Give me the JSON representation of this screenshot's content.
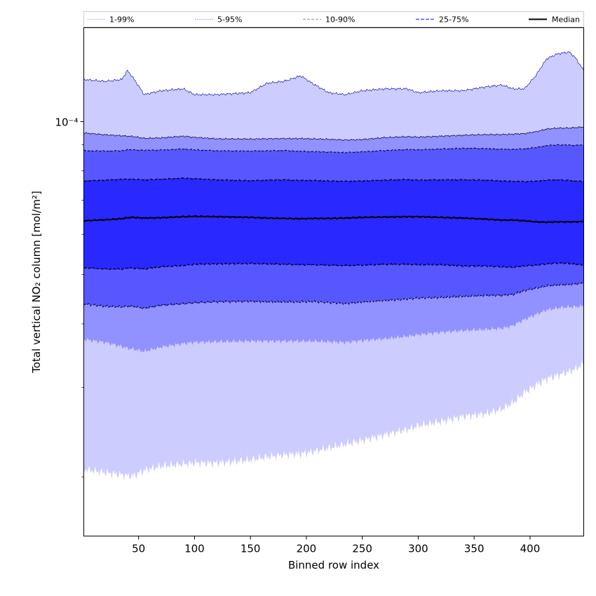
{
  "chart_data": {
    "type": "area",
    "xlabel": "Binned row index",
    "ylabel": "Total vertical NO₂ column [mol/m²]",
    "ylabel_display": "Total vertical NO₂ column [mol/m²]",
    "yscale": "log",
    "xlim": [
      1,
      448
    ],
    "ylim": [
      1.53e-05,
      0.000153
    ],
    "x_ticks": [
      50,
      100,
      150,
      200,
      250,
      300,
      350,
      400
    ],
    "y_tick_labeled": {
      "value": 0.0001,
      "label": "10⁻⁴"
    },
    "grid": false,
    "legend_placement": "top",
    "legend": [
      "1-99%",
      "5-95%",
      "10-90%",
      "25-75%",
      "Median"
    ],
    "colors": {
      "band_1_99": "#ccccff",
      "band_5_95": "#9191ff",
      "band_10_90": "#5757ff",
      "band_25_75": "#2929ff",
      "median": "#000000",
      "edge": "#00008b"
    },
    "x": [
      1,
      20,
      35,
      40,
      45,
      55,
      70,
      90,
      100,
      120,
      150,
      165,
      180,
      195,
      205,
      220,
      235,
      250,
      270,
      290,
      300,
      320,
      340,
      360,
      375,
      385,
      395,
      405,
      415,
      425,
      435,
      440,
      448
    ],
    "series": [
      {
        "name": "1-99%",
        "lower": [
          2.07e-05,
          2.04e-05,
          2.02e-05,
          2.01e-05,
          2.01e-05,
          2.06e-05,
          2.1e-05,
          2.12e-05,
          2.13e-05,
          2.13e-05,
          2.16e-05,
          2.19e-05,
          2.21e-05,
          2.22e-05,
          2.24e-05,
          2.28e-05,
          2.32e-05,
          2.36e-05,
          2.42e-05,
          2.48e-05,
          2.52e-05,
          2.57e-05,
          2.63e-05,
          2.66e-05,
          2.72e-05,
          2.8e-05,
          2.93e-05,
          3.03e-05,
          3.12e-05,
          3.17e-05,
          3.22e-05,
          3.26e-05,
          3.33e-05
        ],
        "upper": [
          0.000121,
          0.00012,
          0.000121,
          0.000126,
          0.000122,
          0.000113,
          0.000115,
          0.000116,
          0.000113,
          0.000113,
          0.000114,
          0.000119,
          0.00012,
          0.000123,
          0.000119,
          0.000114,
          0.000113,
          0.000115,
          0.000116,
          0.000116,
          0.000114,
          0.000115,
          0.000115,
          0.000117,
          0.000118,
          0.000116,
          0.000116,
          0.000123,
          0.000133,
          0.000136,
          0.000137,
          0.000134,
          0.000126
        ]
      },
      {
        "name": "5-95%",
        "lower": [
          3.73e-05,
          3.68e-05,
          3.61e-05,
          3.58e-05,
          3.57e-05,
          3.53e-05,
          3.6e-05,
          3.66e-05,
          3.68e-05,
          3.69e-05,
          3.7e-05,
          3.7e-05,
          3.7e-05,
          3.7e-05,
          3.7e-05,
          3.69e-05,
          3.68e-05,
          3.71e-05,
          3.74e-05,
          3.78e-05,
          3.81e-05,
          3.85e-05,
          3.88e-05,
          3.9e-05,
          3.92e-05,
          3.97e-05,
          4.08e-05,
          4.17e-05,
          4.26e-05,
          4.3e-05,
          4.32e-05,
          4.32e-05,
          4.34e-05
        ],
        "upper": [
          9.5e-05,
          9.42e-05,
          9.38e-05,
          9.36e-05,
          9.35e-05,
          9.27e-05,
          9.29e-05,
          9.36e-05,
          9.31e-05,
          9.25e-05,
          9.24e-05,
          9.25e-05,
          9.26e-05,
          9.26e-05,
          9.25e-05,
          9.23e-05,
          9.2e-05,
          9.22e-05,
          9.3e-05,
          9.34e-05,
          9.32e-05,
          9.36e-05,
          9.4e-05,
          9.43e-05,
          9.43e-05,
          9.45e-05,
          9.47e-05,
          9.55e-05,
          9.67e-05,
          9.71e-05,
          9.71e-05,
          9.73e-05,
          9.76e-05
        ]
      },
      {
        "name": "10-90%",
        "lower": [
          4.38e-05,
          4.33e-05,
          4.32e-05,
          4.33e-05,
          4.33e-05,
          4.29e-05,
          4.35e-05,
          4.38e-05,
          4.4e-05,
          4.42e-05,
          4.43e-05,
          4.42e-05,
          4.42e-05,
          4.42e-05,
          4.43e-05,
          4.41e-05,
          4.39e-05,
          4.42e-05,
          4.45e-05,
          4.48e-05,
          4.5e-05,
          4.51e-05,
          4.53e-05,
          4.55e-05,
          4.55e-05,
          4.57e-05,
          4.65e-05,
          4.7e-05,
          4.75e-05,
          4.77e-05,
          4.78e-05,
          4.79e-05,
          4.81e-05
        ],
        "upper": [
          8.76e-05,
          8.75e-05,
          8.76e-05,
          8.81e-05,
          8.8e-05,
          8.78e-05,
          8.79e-05,
          8.83e-05,
          8.8e-05,
          8.76e-05,
          8.75e-05,
          8.76e-05,
          8.77e-05,
          8.74e-05,
          8.73e-05,
          8.71e-05,
          8.69e-05,
          8.72e-05,
          8.77e-05,
          8.81e-05,
          8.8e-05,
          8.83e-05,
          8.86e-05,
          8.85e-05,
          8.82e-05,
          8.82e-05,
          8.84e-05,
          8.89e-05,
          8.97e-05,
          9e-05,
          8.99e-05,
          8.98e-05,
          9e-05
        ]
      },
      {
        "name": "25-75%",
        "lower": [
          5.16e-05,
          5.13e-05,
          5.13e-05,
          5.15e-05,
          5.15e-05,
          5.13e-05,
          5.18e-05,
          5.21e-05,
          5.24e-05,
          5.25e-05,
          5.26e-05,
          5.25e-05,
          5.24e-05,
          5.23e-05,
          5.23e-05,
          5.22e-05,
          5.21e-05,
          5.22e-05,
          5.24e-05,
          5.24e-05,
          5.23e-05,
          5.23e-05,
          5.2e-05,
          5.2e-05,
          5.18e-05,
          5.17e-05,
          5.2e-05,
          5.22e-05,
          5.25e-05,
          5.27e-05,
          5.26e-05,
          5.24e-05,
          5.23e-05
        ],
        "upper": [
          7.64e-05,
          7.67e-05,
          7.7e-05,
          7.7e-05,
          7.7e-05,
          7.68e-05,
          7.7e-05,
          7.74e-05,
          7.72e-05,
          7.68e-05,
          7.65e-05,
          7.67e-05,
          7.68e-05,
          7.66e-05,
          7.66e-05,
          7.64e-05,
          7.63e-05,
          7.64e-05,
          7.67e-05,
          7.69e-05,
          7.67e-05,
          7.68e-05,
          7.68e-05,
          7.67e-05,
          7.64e-05,
          7.63e-05,
          7.62e-05,
          7.63e-05,
          7.67e-05,
          7.68e-05,
          7.66e-05,
          7.64e-05,
          7.62e-05
        ]
      },
      {
        "name": "Median",
        "values": [
          6.38e-05,
          6.41e-05,
          6.44e-05,
          6.47e-05,
          6.48e-05,
          6.46e-05,
          6.47e-05,
          6.5e-05,
          6.51e-05,
          6.5e-05,
          6.48e-05,
          6.46e-05,
          6.45e-05,
          6.44e-05,
          6.45e-05,
          6.45e-05,
          6.46e-05,
          6.48e-05,
          6.49e-05,
          6.5e-05,
          6.5e-05,
          6.48e-05,
          6.46e-05,
          6.43e-05,
          6.4e-05,
          6.4e-05,
          6.38e-05,
          6.35e-05,
          6.34e-05,
          6.35e-05,
          6.35e-05,
          6.35e-05,
          6.36e-05
        ]
      }
    ]
  }
}
